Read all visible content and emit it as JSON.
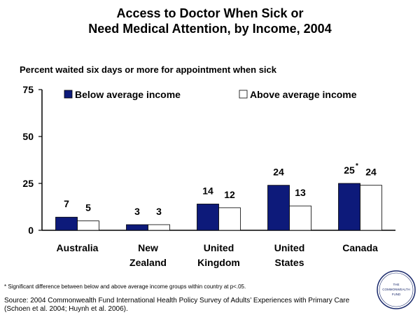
{
  "title_lines": [
    "Access to Doctor When Sick or",
    "Need Medical Attention, by Income, 2004"
  ],
  "subtitle": "Percent waited six days or more for appointment when sick",
  "footnote": "* Significant difference between below and above average income groups within country at p<.05.",
  "source_lines": [
    "Source: 2004 Commonwealth Fund International Health Policy Survey of Adults’ Experiences with Primary Care",
    "(Schoen et al. 2004; Huynh et al. 2006)."
  ],
  "logo": {
    "line1": "THE",
    "line2": "COMMONWEALTH",
    "line3": "FUND"
  },
  "colors": {
    "below": "#0d1a7a",
    "above": "#ffffff",
    "outline": "#000000"
  },
  "chart_data": {
    "type": "bar",
    "categories": [
      [
        "Australia"
      ],
      [
        "New",
        "Zealand"
      ],
      [
        "United",
        "Kingdom"
      ],
      [
        "United",
        "States"
      ],
      [
        "Canada"
      ]
    ],
    "series": [
      {
        "name": "Below average income",
        "values": [
          7,
          3,
          14,
          24,
          25
        ]
      },
      {
        "name": "Above average income",
        "values": [
          5,
          3,
          12,
          13,
          24
        ]
      }
    ],
    "asterisk": "*",
    "significant": [
      false,
      false,
      false,
      false,
      true
    ],
    "ylim": [
      0,
      75
    ],
    "yticks": [
      0,
      25,
      50,
      75
    ],
    "grid": false,
    "legend_position": "top"
  }
}
